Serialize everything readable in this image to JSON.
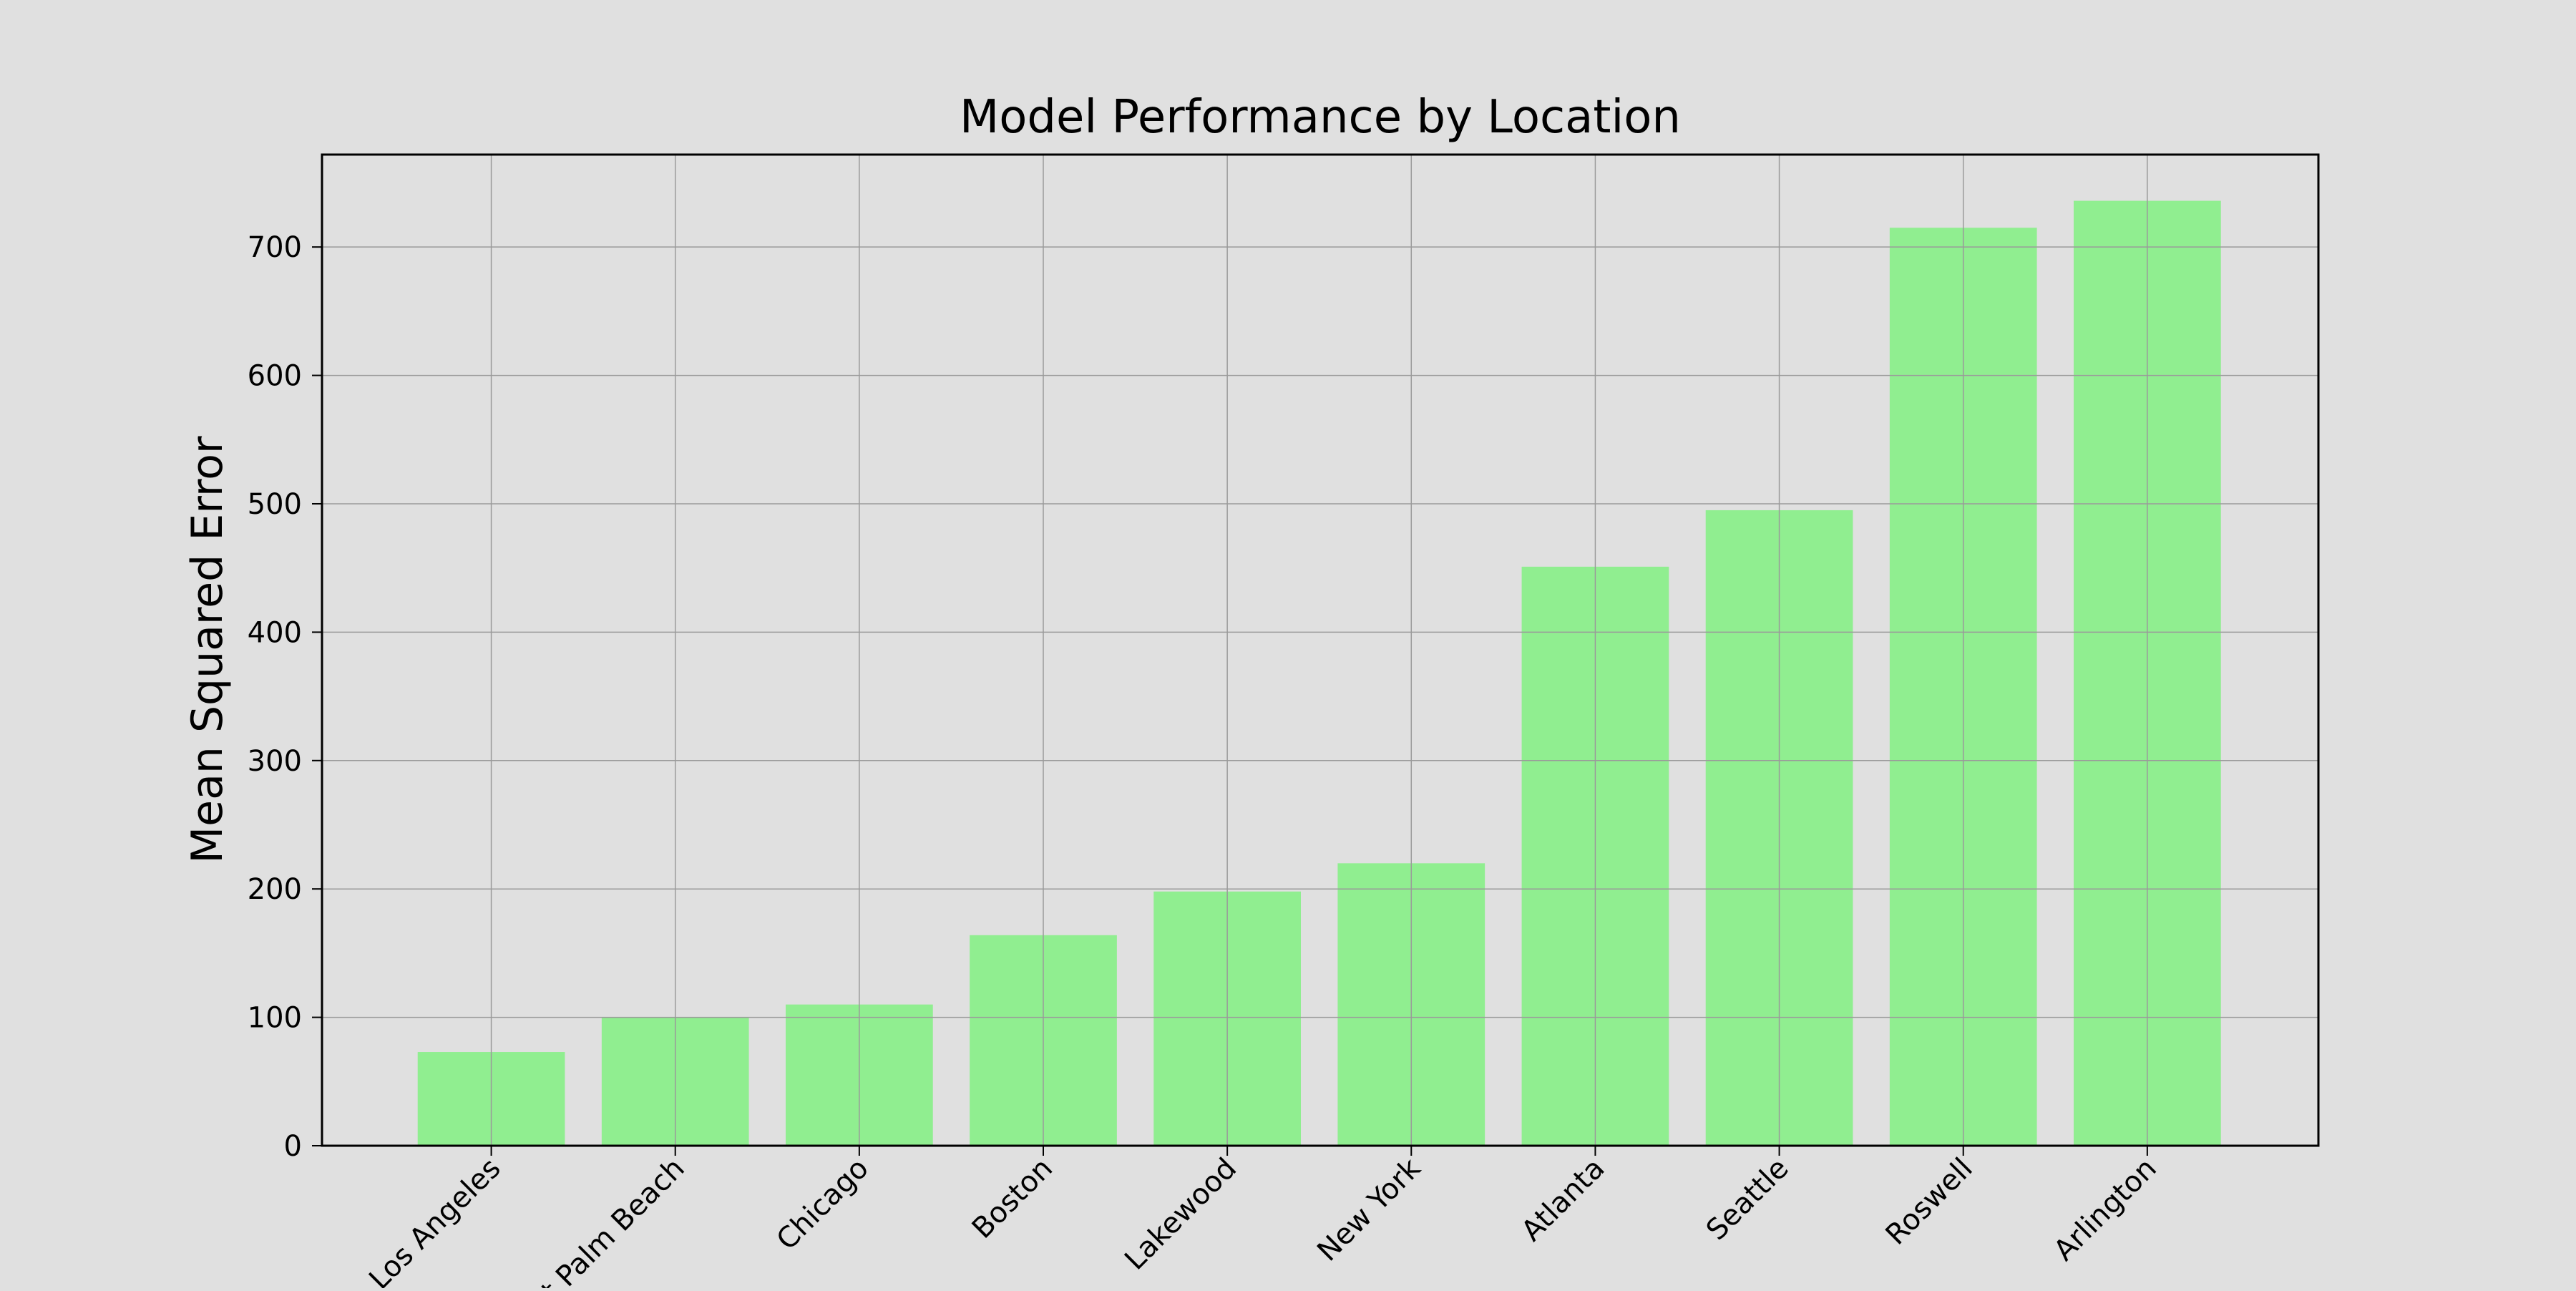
{
  "chart_data": {
    "type": "bar",
    "title": "Model Performance by Location",
    "xlabel": "",
    "ylabel": "Mean Squared Error",
    "categories": [
      "Los Angeles",
      "West Palm Beach",
      "Chicago",
      "Boston",
      "Lakewood",
      "New York",
      "Atlanta",
      "Seattle",
      "Roswell",
      "Arlington"
    ],
    "values": [
      73,
      100,
      110,
      164,
      198,
      220,
      451,
      495,
      715,
      736
    ],
    "ylim": [
      0,
      772
    ],
    "yticks": [
      0,
      100,
      200,
      300,
      400,
      500,
      600,
      700
    ],
    "grid": true,
    "legend": "none",
    "colors": {
      "bar": "#90ee90",
      "background": "#e0e0e0",
      "grid": "#9a9a9a",
      "axes": "#000000"
    }
  }
}
